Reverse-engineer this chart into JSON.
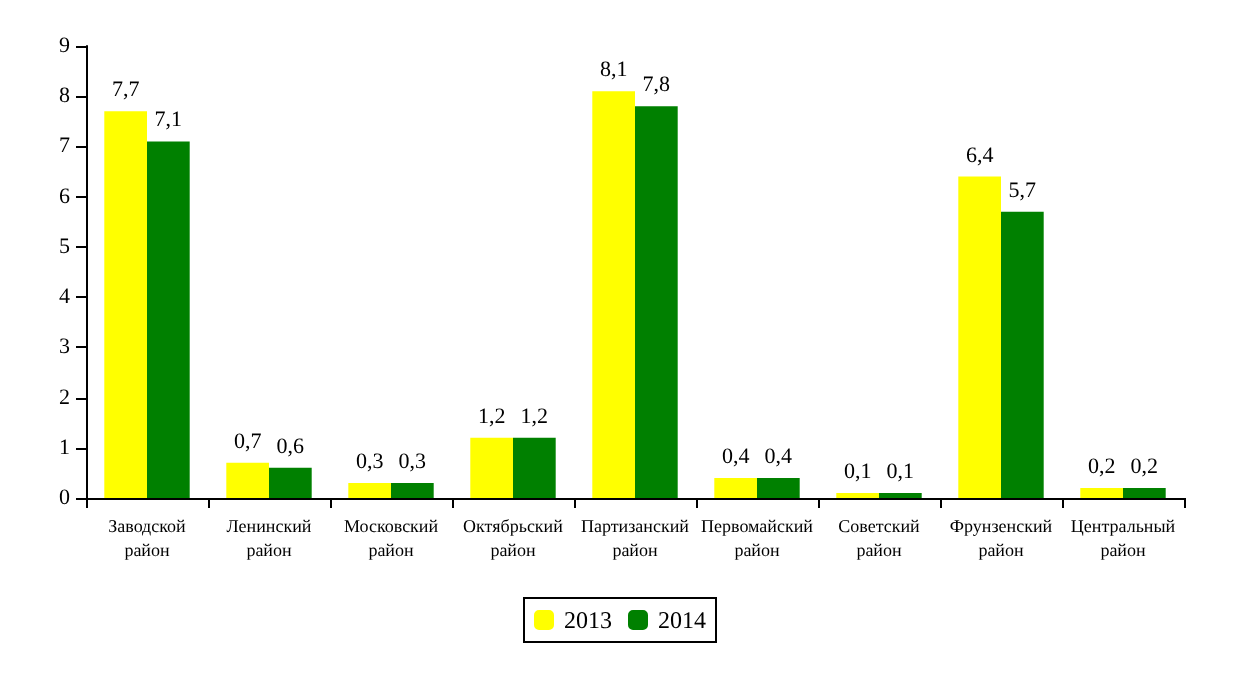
{
  "chart_data": {
    "type": "bar",
    "categories": [
      "Заводской район",
      "Ленинский район",
      "Московский район",
      "Октябрьский район",
      "Партизанский район",
      "Первомайский район",
      "Советский район",
      "Фрунзенский район",
      "Центральный район"
    ],
    "series": [
      {
        "name": "2013",
        "color": "#ffff00",
        "values": [
          7.7,
          0.7,
          0.3,
          1.2,
          8.1,
          0.4,
          0.1,
          6.4,
          0.2
        ],
        "value_labels": [
          "7,7",
          "0,7",
          "0,3",
          "1,2",
          "8,1",
          "0,4",
          "0,1",
          "6,4",
          "0,2"
        ]
      },
      {
        "name": "2014",
        "color": "#008000",
        "values": [
          7.1,
          0.6,
          0.3,
          1.2,
          7.8,
          0.4,
          0.1,
          5.7,
          0.2
        ],
        "value_labels": [
          "7,1",
          "0,6",
          "0,3",
          "1,2",
          "7,8",
          "0,4",
          "0,1",
          "5,7",
          "0,2"
        ]
      }
    ],
    "ylim": [
      0,
      9
    ],
    "yticks": [
      0,
      1,
      2,
      3,
      4,
      5,
      6,
      7,
      8,
      9
    ],
    "grid": false,
    "legend": "bottom"
  }
}
